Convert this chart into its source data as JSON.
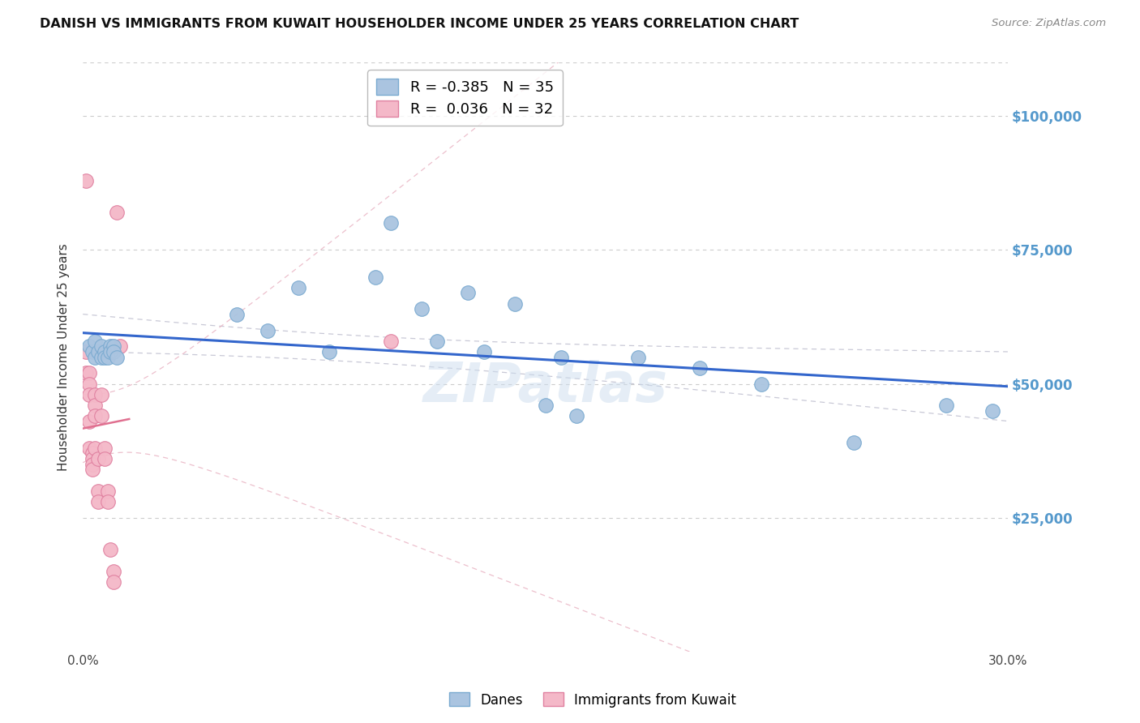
{
  "title": "DANISH VS IMMIGRANTS FROM KUWAIT HOUSEHOLDER INCOME UNDER 25 YEARS CORRELATION CHART",
  "source": "Source: ZipAtlas.com",
  "ylabel": "Householder Income Under 25 years",
  "xlim": [
    0.0,
    0.3
  ],
  "ylim": [
    0,
    110000
  ],
  "yticks": [
    0,
    25000,
    50000,
    75000,
    100000
  ],
  "ytick_labels": [
    "",
    "$25,000",
    "$50,000",
    "$75,000",
    "$100,000"
  ],
  "xticks": [
    0.0,
    0.05,
    0.1,
    0.15,
    0.2,
    0.25,
    0.3
  ],
  "xtick_labels": [
    "0.0%",
    "",
    "",
    "",
    "",
    "",
    "30.0%"
  ],
  "danes_R": -0.385,
  "danes_N": 35,
  "kuwait_R": 0.036,
  "kuwait_N": 32,
  "danes_color": "#aac4e0",
  "danes_edge_color": "#7aaad0",
  "kuwait_color": "#f4b8c8",
  "kuwait_edge_color": "#e080a0",
  "danes_line_color": "#3366cc",
  "kuwait_line_color": "#e07090",
  "danes_ci_color": "#bbbbcc",
  "kuwait_ci_color": "#e8b0c0",
  "background_color": "#ffffff",
  "grid_color": "#cccccc",
  "axis_label_color": "#5599cc",
  "watermark": "ZIPatlas",
  "danes_x": [
    0.002,
    0.003,
    0.004,
    0.004,
    0.005,
    0.006,
    0.006,
    0.007,
    0.007,
    0.008,
    0.009,
    0.009,
    0.01,
    0.01,
    0.011,
    0.05,
    0.06,
    0.07,
    0.08,
    0.095,
    0.1,
    0.11,
    0.115,
    0.125,
    0.13,
    0.14,
    0.15,
    0.155,
    0.16,
    0.18,
    0.2,
    0.22,
    0.25,
    0.28,
    0.295
  ],
  "danes_y": [
    57000,
    56000,
    55000,
    58000,
    56000,
    55000,
    57000,
    56000,
    55000,
    55000,
    57000,
    56000,
    57000,
    56000,
    55000,
    63000,
    60000,
    68000,
    56000,
    70000,
    80000,
    64000,
    58000,
    67000,
    56000,
    65000,
    46000,
    55000,
    44000,
    55000,
    53000,
    50000,
    39000,
    46000,
    45000
  ],
  "kuwait_x": [
    0.001,
    0.001,
    0.001,
    0.002,
    0.002,
    0.002,
    0.002,
    0.002,
    0.003,
    0.003,
    0.003,
    0.003,
    0.004,
    0.004,
    0.004,
    0.004,
    0.005,
    0.005,
    0.005,
    0.006,
    0.006,
    0.006,
    0.007,
    0.007,
    0.008,
    0.008,
    0.009,
    0.01,
    0.01,
    0.011,
    0.012,
    0.1
  ],
  "kuwait_y": [
    88000,
    56000,
    52000,
    52000,
    50000,
    48000,
    43000,
    38000,
    37000,
    36000,
    35000,
    34000,
    48000,
    46000,
    44000,
    38000,
    36000,
    30000,
    28000,
    56000,
    48000,
    44000,
    38000,
    36000,
    30000,
    28000,
    19000,
    15000,
    13000,
    82000,
    57000,
    58000
  ]
}
